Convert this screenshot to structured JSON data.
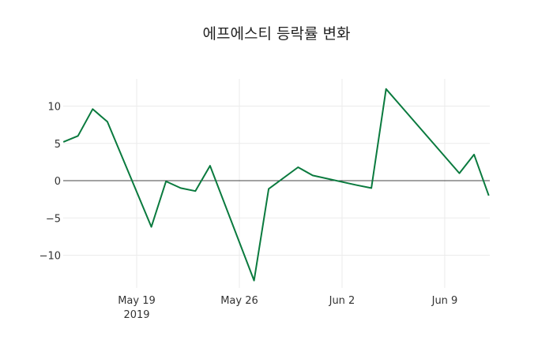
{
  "chart_data": {
    "type": "line",
    "title": "에프에스티 등락률 변화",
    "xlabel": "",
    "ylabel": "",
    "x": [
      "2019-05-14",
      "2019-05-15",
      "2019-05-16",
      "2019-05-17",
      "2019-05-20",
      "2019-05-21",
      "2019-05-22",
      "2019-05-23",
      "2019-05-24",
      "2019-05-27",
      "2019-05-28",
      "2019-05-30",
      "2019-05-31",
      "2019-06-03",
      "2019-06-04",
      "2019-06-05",
      "2019-06-10",
      "2019-06-11",
      "2019-06-12"
    ],
    "series": [
      {
        "name": "등락률",
        "color": "#0a7a3e",
        "values": [
          5.2,
          6.0,
          9.6,
          7.9,
          -6.2,
          -0.1,
          -1.0,
          -1.4,
          2.0,
          -13.4,
          -1.1,
          1.8,
          0.7,
          -0.6,
          -1.0,
          12.3,
          1.0,
          3.5,
          -2.0
        ]
      }
    ],
    "ylim": [
      -14,
      13.5
    ],
    "yticks": [
      10,
      5,
      0,
      -5,
      -10
    ],
    "ytick_labels": [
      "10",
      "5",
      "0",
      "−5",
      "−10"
    ],
    "xticks": [
      "May 19",
      "May 26",
      "Jun 2",
      "Jun 9"
    ],
    "xtick_sublabel": "2019",
    "grid": true,
    "zero_line": true
  }
}
